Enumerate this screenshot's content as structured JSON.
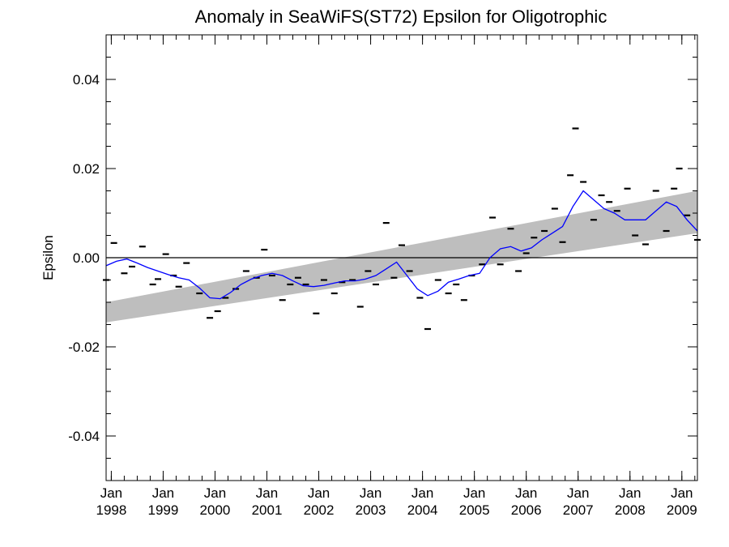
{
  "chart_data": {
    "type": "line",
    "title": "Anomaly in SeaWiFS(ST72) Epsilon for Oligotrophic",
    "xlabel": "",
    "ylabel": "Epsilon",
    "xlim": [
      1997.9,
      2009.3
    ],
    "ylim": [
      -0.05,
      0.05
    ],
    "grid": false,
    "y_ticks": [
      -0.04,
      -0.02,
      0.0,
      0.02,
      0.04
    ],
    "y_tick_labels": [
      "-0.04",
      "-0.02",
      "0.00",
      "0.02",
      "0.04"
    ],
    "x_ticks": [
      1998,
      1999,
      2000,
      2001,
      2002,
      2003,
      2004,
      2005,
      2006,
      2007,
      2008,
      2009
    ],
    "x_tick_labels": [
      [
        "Jan",
        "1998"
      ],
      [
        "Jan",
        "1999"
      ],
      [
        "Jan",
        "2000"
      ],
      [
        "Jan",
        "2001"
      ],
      [
        "Jan",
        "2002"
      ],
      [
        "Jan",
        "2003"
      ],
      [
        "Jan",
        "2004"
      ],
      [
        "Jan",
        "2005"
      ],
      [
        "Jan",
        "2006"
      ],
      [
        "Jan",
        "2007"
      ],
      [
        "Jan",
        "2008"
      ],
      [
        "Jan",
        "2009"
      ]
    ],
    "reference_line": 0.0,
    "trend_band": {
      "color": "#bebebe",
      "x": [
        1997.9,
        2009.3
      ],
      "lower": [
        -0.0145,
        0.0055
      ],
      "upper": [
        -0.01,
        0.015
      ]
    },
    "series": [
      {
        "style": "line",
        "color": "#0000ff",
        "x": [
          1997.9,
          1998.1,
          1998.3,
          1998.5,
          1998.7,
          1998.9,
          1999.1,
          1999.3,
          1999.5,
          1999.7,
          1999.9,
          2000.1,
          2000.3,
          2000.5,
          2000.7,
          2000.9,
          2001.1,
          2001.3,
          2001.5,
          2001.7,
          2001.9,
          2002.1,
          2002.3,
          2002.5,
          2002.7,
          2002.9,
          2003.1,
          2003.3,
          2003.5,
          2003.7,
          2003.9,
          2004.1,
          2004.3,
          2004.5,
          2004.7,
          2004.9,
          2005.1,
          2005.3,
          2005.5,
          2005.7,
          2005.9,
          2006.1,
          2006.3,
          2006.5,
          2006.7,
          2006.9,
          2007.1,
          2007.3,
          2007.5,
          2007.7,
          2007.9,
          2008.1,
          2008.3,
          2008.5,
          2008.7,
          2008.9,
          2009.1,
          2009.3
        ],
        "values": [
          -0.0018,
          -0.0008,
          -0.0003,
          -0.0012,
          -0.0022,
          -0.003,
          -0.0038,
          -0.0045,
          -0.005,
          -0.0068,
          -0.009,
          -0.0092,
          -0.0078,
          -0.006,
          -0.0048,
          -0.004,
          -0.0035,
          -0.004,
          -0.0052,
          -0.0063,
          -0.0065,
          -0.0062,
          -0.0057,
          -0.0052,
          -0.0052,
          -0.0048,
          -0.004,
          -0.0025,
          -0.001,
          -0.004,
          -0.007,
          -0.0085,
          -0.0075,
          -0.0055,
          -0.0048,
          -0.004,
          -0.0035,
          0.0,
          0.002,
          0.0025,
          0.0015,
          0.0022,
          0.004,
          0.0055,
          0.007,
          0.0115,
          0.015,
          0.013,
          0.011,
          0.01,
          0.0085,
          0.0085,
          0.0085,
          0.0105,
          0.0125,
          0.0115,
          0.0085,
          0.006
        ]
      },
      {
        "style": "dash-markers",
        "color": "#000000",
        "x": [
          1997.9,
          1998.05,
          1998.25,
          1998.4,
          1998.6,
          1998.8,
          1998.9,
          1999.05,
          1999.2,
          1999.3,
          1999.45,
          1999.7,
          1999.9,
          2000.05,
          2000.2,
          2000.4,
          2000.6,
          2000.8,
          2000.95,
          2001.1,
          2001.3,
          2001.45,
          2001.6,
          2001.75,
          2001.95,
          2002.1,
          2002.3,
          2002.45,
          2002.65,
          2002.8,
          2002.95,
          2003.1,
          2003.3,
          2003.45,
          2003.6,
          2003.75,
          2003.95,
          2004.1,
          2004.3,
          2004.5,
          2004.65,
          2004.8,
          2004.95,
          2005.15,
          2005.35,
          2005.5,
          2005.7,
          2005.85,
          2006.0,
          2006.15,
          2006.35,
          2006.55,
          2006.7,
          2006.85,
          2006.95,
          2007.1,
          2007.3,
          2007.45,
          2007.6,
          2007.75,
          2007.95,
          2008.1,
          2008.3,
          2008.5,
          2008.7,
          2008.85,
          2008.95,
          2009.1,
          2009.3
        ],
        "values": [
          -0.005,
          0.0033,
          -0.0035,
          -0.002,
          0.0025,
          -0.006,
          -0.0048,
          0.0008,
          -0.004,
          -0.0065,
          -0.0012,
          -0.008,
          -0.0135,
          -0.012,
          -0.009,
          -0.007,
          -0.003,
          -0.0045,
          0.0018,
          -0.004,
          -0.0095,
          -0.006,
          -0.0045,
          -0.006,
          -0.0125,
          -0.005,
          -0.008,
          -0.0055,
          -0.005,
          -0.011,
          -0.003,
          -0.006,
          0.0078,
          -0.0045,
          0.0028,
          -0.003,
          -0.009,
          -0.016,
          -0.005,
          -0.008,
          -0.006,
          -0.0095,
          -0.004,
          -0.0015,
          0.009,
          -0.0015,
          0.0065,
          -0.003,
          0.001,
          0.0045,
          0.006,
          0.011,
          0.0035,
          0.0185,
          0.029,
          0.017,
          0.0085,
          0.014,
          0.0125,
          0.0105,
          0.0155,
          0.005,
          0.003,
          0.015,
          0.006,
          0.0155,
          0.02,
          0.0095,
          0.004
        ]
      }
    ]
  }
}
